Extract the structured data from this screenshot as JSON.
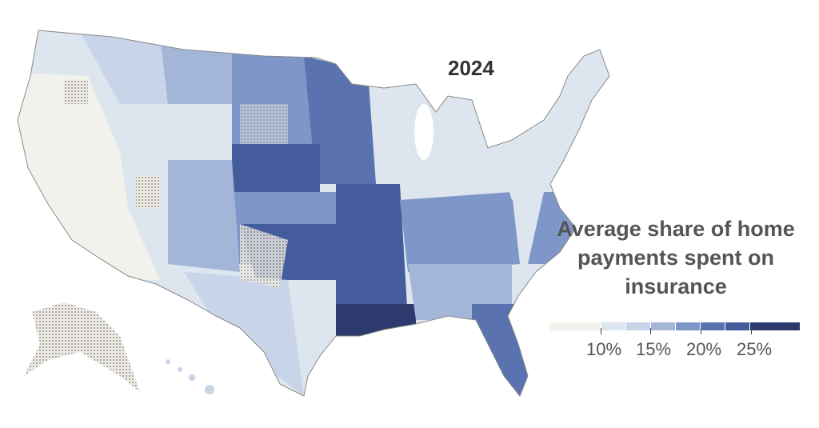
{
  "title": "2024",
  "legend": {
    "title": "Average share of home payments spent on insurance",
    "bins": [
      {
        "range": "<10%",
        "color": "#f2f2ec"
      },
      {
        "range": "10-12.5%",
        "color": "#dde5ee"
      },
      {
        "range": "12.5-15%",
        "color": "#c8d5e8"
      },
      {
        "range": "15-17.5%",
        "color": "#a3b6d8"
      },
      {
        "range": "17.5-20%",
        "color": "#7f97c8"
      },
      {
        "range": "20-22.5%",
        "color": "#5a72b0"
      },
      {
        "range": "22.5-25%",
        "color": "#445c9c"
      },
      {
        "range": ">25%",
        "color": "#2c3a6e"
      }
    ],
    "ticks": [
      "10%",
      "15%",
      "20%",
      "25%"
    ]
  },
  "no_data_pattern": "dotted"
}
